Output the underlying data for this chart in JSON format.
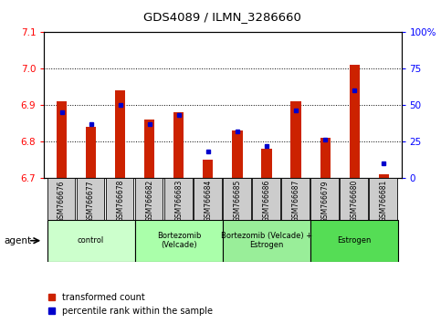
{
  "title": "GDS4089 / ILMN_3286660",
  "samples": [
    "GSM766676",
    "GSM766677",
    "GSM766678",
    "GSM766682",
    "GSM766683",
    "GSM766684",
    "GSM766685",
    "GSM766686",
    "GSM766687",
    "GSM766679",
    "GSM766680",
    "GSM766681"
  ],
  "red_values": [
    6.91,
    6.84,
    6.94,
    6.86,
    6.88,
    6.75,
    6.83,
    6.78,
    6.91,
    6.81,
    7.01,
    6.71
  ],
  "blue_values": [
    45,
    37,
    50,
    37,
    43,
    18,
    32,
    22,
    46,
    26,
    60,
    10
  ],
  "ylim_left": [
    6.7,
    7.1
  ],
  "ylim_right": [
    0,
    100
  ],
  "yticks_left": [
    6.7,
    6.8,
    6.9,
    7.0,
    7.1
  ],
  "yticks_right": [
    0,
    25,
    50,
    75,
    100
  ],
  "ytick_labels_right": [
    "0",
    "25",
    "50",
    "75",
    "100%"
  ],
  "groups": [
    {
      "label": "control",
      "start": 0,
      "end": 3,
      "color": "#ccffcc"
    },
    {
      "label": "Bortezomib\n(Velcade)",
      "start": 3,
      "end": 6,
      "color": "#aaffaa"
    },
    {
      "label": "Bortezomib (Velcade) +\nEstrogen",
      "start": 6,
      "end": 9,
      "color": "#99ee99"
    },
    {
      "label": "Estrogen",
      "start": 9,
      "end": 12,
      "color": "#55dd55"
    }
  ],
  "bar_color_red": "#cc2200",
  "bar_color_blue": "#0000cc",
  "legend_red": "transformed count",
  "legend_blue": "percentile rank within the sample",
  "xtick_bg": "#cccccc"
}
